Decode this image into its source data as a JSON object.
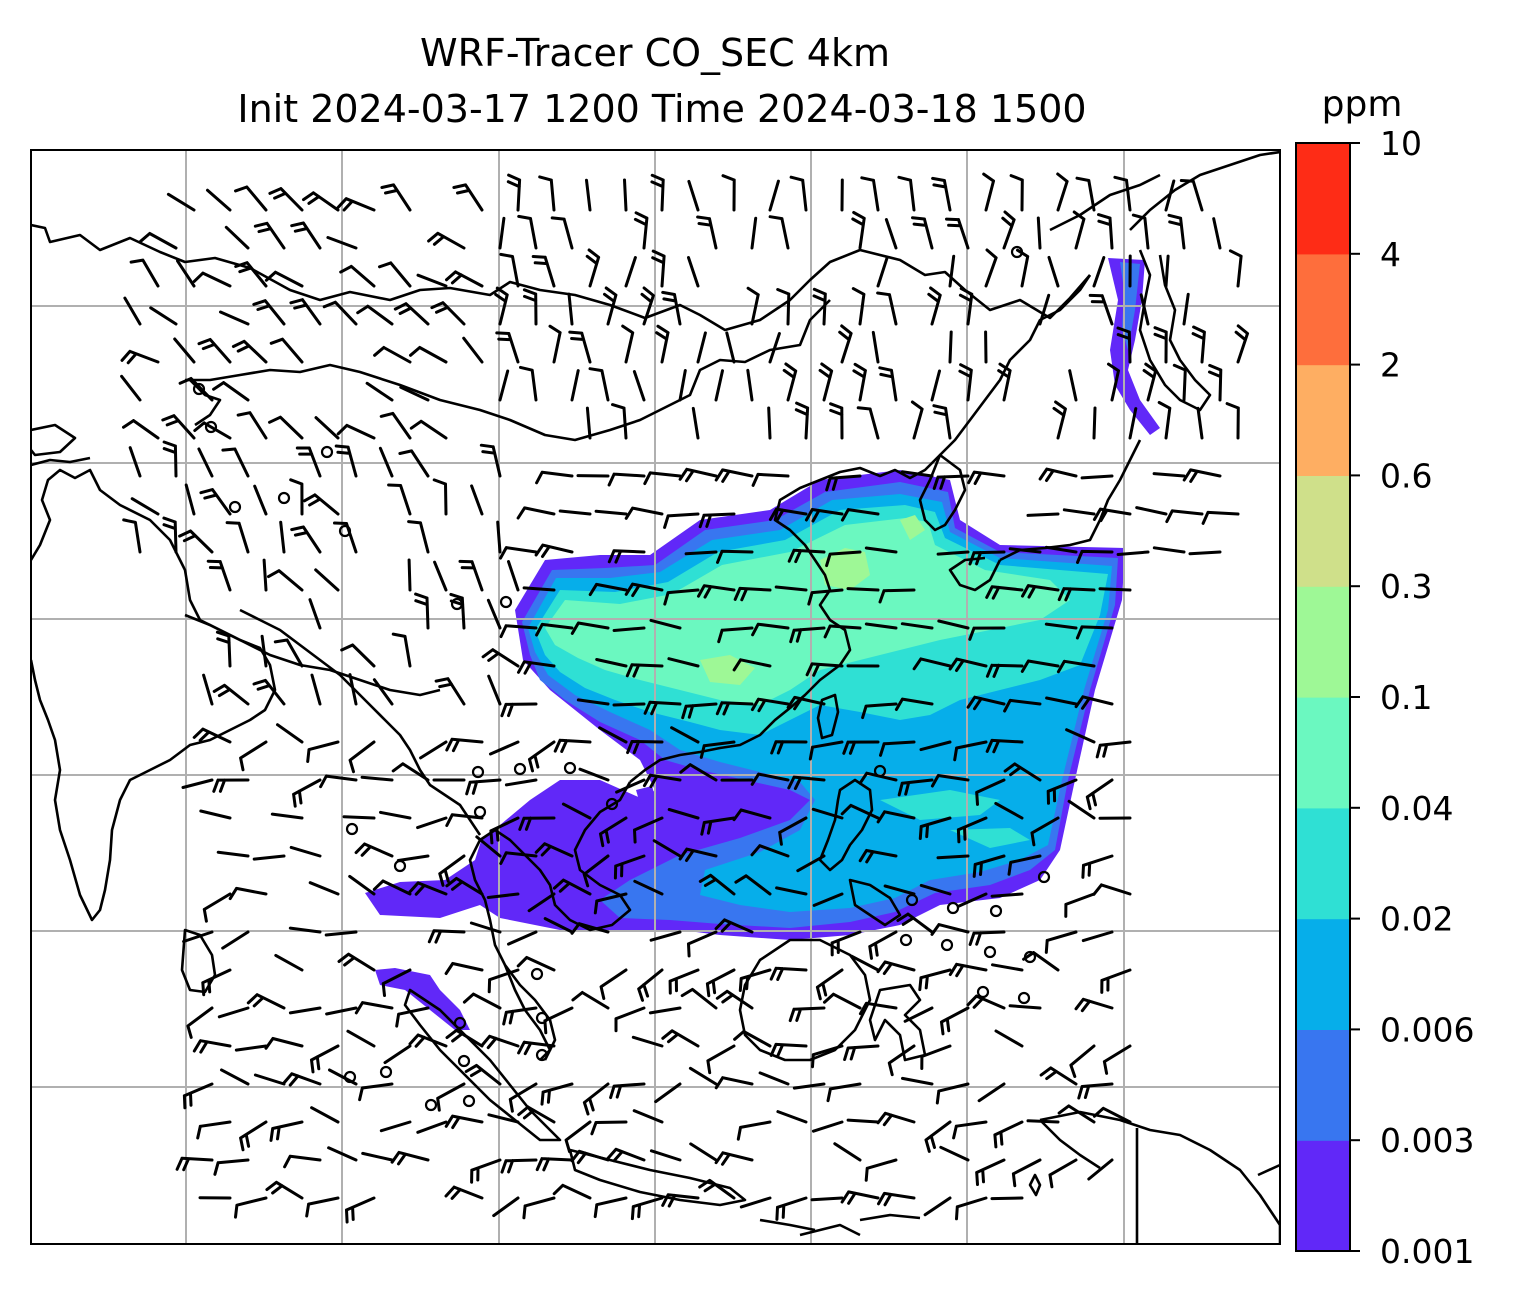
{
  "title": {
    "line1": "WRF-Tracer CO_SEC 4km",
    "line2": "Init 2024-03-17 1200 Time 2024-03-18 1500"
  },
  "colorbar": {
    "unit": "ppm",
    "levels": [
      "0.001",
      "0.003",
      "0.006",
      "0.02",
      "0.04",
      "0.1",
      "0.3",
      "0.6",
      "2",
      "4",
      "10"
    ],
    "colors": [
      "#6128f8",
      "#3876f0",
      "#06aeea",
      "#2fe0d4",
      "#6bf8c0",
      "#9ef896",
      "#cfe08a",
      "#feae62",
      "#fe6e3c",
      "#fe2c16"
    ]
  },
  "map": {
    "plume_colors": {
      "c1": "#6128f8",
      "c2": "#3876f0",
      "c3": "#06aeea",
      "c4": "#2fe0d4",
      "c5": "#6bf8c0",
      "c6": "#9ef896"
    },
    "coastline_color": "#000000",
    "gridline_color": "#b0b0b0",
    "wind_symbol": "wind-barb-icon",
    "calm_symbol": "calm-circle-icon"
  }
}
